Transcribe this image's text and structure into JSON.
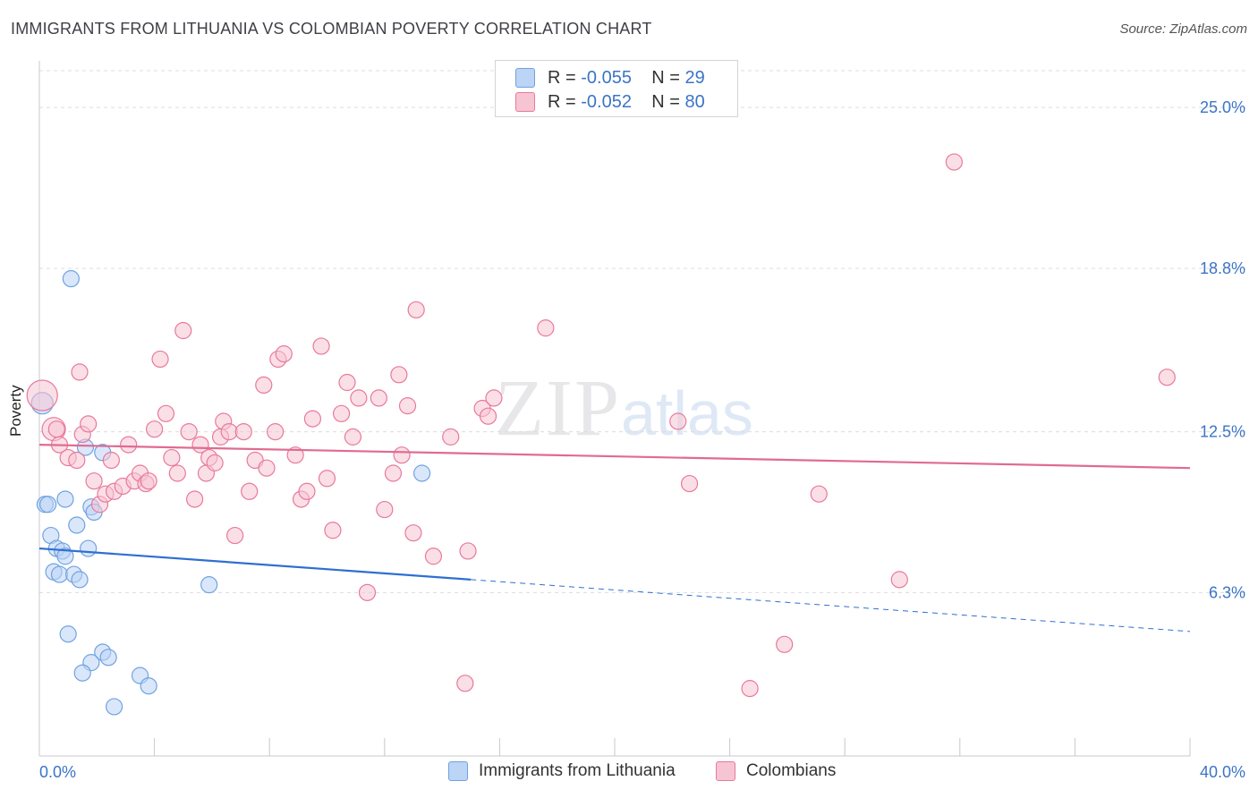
{
  "title": "IMMIGRANTS FROM LITHUANIA VS COLOMBIAN POVERTY CORRELATION CHART",
  "source": "Source: ZipAtlas.com",
  "watermark": {
    "a": "ZIP",
    "b": "atlas"
  },
  "colors": {
    "blue": "#6fa3e0",
    "blue_fill": "#bcd4f5",
    "pink": "#e8799c",
    "pink_fill": "#f7c4d4",
    "text_blue": "#3b74c6"
  },
  "legend": {
    "rows": [
      {
        "r_label": "R = ",
        "r_value": "-0.055",
        "n_label": "N = ",
        "n_value": "29",
        "series": "blue"
      },
      {
        "r_label": "R = ",
        "r_value": "-0.052",
        "n_label": "N = ",
        "n_value": "80",
        "series": "pink"
      }
    ]
  },
  "bottom_legend": [
    "Immigrants from Lithuania",
    "Colombians"
  ],
  "chart_data": {
    "type": "scatter",
    "title": "IMMIGRANTS FROM LITHUANIA VS COLOMBIAN POVERTY CORRELATION CHART",
    "ylabel": "Poverty",
    "xlabel": "",
    "xlim": [
      0,
      40
    ],
    "ylim": [
      0,
      26.8
    ],
    "x_tick_labels": [
      {
        "value": 0,
        "label": "0.0%"
      },
      {
        "value": 40,
        "label": "40.0%"
      }
    ],
    "y_tick_labels": [
      {
        "value": 6.3,
        "label": "6.3%"
      },
      {
        "value": 12.5,
        "label": "12.5%"
      },
      {
        "value": 18.8,
        "label": "18.8%"
      },
      {
        "value": 25.0,
        "label": "25.0%"
      }
    ],
    "grid": {
      "horizontal": true,
      "dashed": true
    },
    "series": [
      {
        "name": "Immigrants from Lithuania",
        "color": "blue",
        "trend": {
          "x0": 0,
          "y0": 8.0,
          "x1": 15,
          "y1": 6.8,
          "dash_x1": 40,
          "dash_y1": 4.8
        },
        "points": [
          [
            1.1,
            18.4
          ],
          [
            0.1,
            13.6
          ],
          [
            1.6,
            11.9
          ],
          [
            2.2,
            11.7
          ],
          [
            0.2,
            9.7
          ],
          [
            0.3,
            9.7
          ],
          [
            0.9,
            9.9
          ],
          [
            1.8,
            9.6
          ],
          [
            1.9,
            9.4
          ],
          [
            1.3,
            8.9
          ],
          [
            0.4,
            8.5
          ],
          [
            0.6,
            8.0
          ],
          [
            0.8,
            7.9
          ],
          [
            0.9,
            7.7
          ],
          [
            1.7,
            8.0
          ],
          [
            0.5,
            7.1
          ],
          [
            0.7,
            7.0
          ],
          [
            1.2,
            7.0
          ],
          [
            1.4,
            6.8
          ],
          [
            5.9,
            6.6
          ],
          [
            1.0,
            4.7
          ],
          [
            2.2,
            4.0
          ],
          [
            2.4,
            3.8
          ],
          [
            1.8,
            3.6
          ],
          [
            1.5,
            3.2
          ],
          [
            3.5,
            3.1
          ],
          [
            3.8,
            2.7
          ],
          [
            2.6,
            1.9
          ],
          [
            13.3,
            10.9
          ]
        ]
      },
      {
        "name": "Colombians",
        "color": "pink",
        "trend": {
          "x0": 0,
          "y0": 12.0,
          "x1": 40,
          "y1": 11.1
        },
        "points": [
          [
            0.1,
            13.9
          ],
          [
            0.5,
            12.6
          ],
          [
            0.7,
            12.0
          ],
          [
            1.0,
            11.5
          ],
          [
            1.3,
            11.4
          ],
          [
            1.4,
            14.8
          ],
          [
            1.5,
            12.4
          ],
          [
            1.7,
            12.8
          ],
          [
            1.9,
            10.6
          ],
          [
            2.1,
            9.7
          ],
          [
            2.3,
            10.1
          ],
          [
            2.5,
            11.4
          ],
          [
            2.6,
            10.2
          ],
          [
            2.9,
            10.4
          ],
          [
            3.1,
            12.0
          ],
          [
            3.3,
            10.6
          ],
          [
            3.5,
            10.9
          ],
          [
            3.7,
            10.5
          ],
          [
            3.8,
            10.6
          ],
          [
            4.0,
            12.6
          ],
          [
            4.2,
            15.3
          ],
          [
            4.4,
            13.2
          ],
          [
            4.6,
            11.5
          ],
          [
            4.8,
            10.9
          ],
          [
            5.0,
            16.4
          ],
          [
            5.2,
            12.5
          ],
          [
            5.4,
            9.9
          ],
          [
            5.6,
            12.0
          ],
          [
            5.8,
            10.9
          ],
          [
            5.9,
            11.5
          ],
          [
            6.1,
            11.3
          ],
          [
            6.3,
            12.3
          ],
          [
            6.4,
            12.9
          ],
          [
            6.6,
            12.5
          ],
          [
            6.8,
            8.5
          ],
          [
            7.1,
            12.5
          ],
          [
            7.3,
            10.2
          ],
          [
            7.5,
            11.4
          ],
          [
            7.8,
            14.3
          ],
          [
            7.9,
            11.1
          ],
          [
            8.2,
            12.5
          ],
          [
            8.3,
            15.3
          ],
          [
            8.5,
            15.5
          ],
          [
            8.9,
            11.6
          ],
          [
            9.1,
            9.9
          ],
          [
            9.3,
            10.2
          ],
          [
            9.5,
            13.0
          ],
          [
            9.8,
            15.8
          ],
          [
            10.0,
            10.7
          ],
          [
            10.2,
            8.7
          ],
          [
            10.5,
            13.2
          ],
          [
            10.7,
            14.4
          ],
          [
            10.9,
            12.3
          ],
          [
            11.1,
            13.8
          ],
          [
            11.4,
            6.3
          ],
          [
            11.8,
            13.8
          ],
          [
            12.0,
            9.5
          ],
          [
            12.3,
            10.9
          ],
          [
            12.5,
            14.7
          ],
          [
            12.6,
            11.6
          ],
          [
            12.8,
            13.5
          ],
          [
            13.0,
            8.6
          ],
          [
            13.1,
            17.2
          ],
          [
            13.7,
            7.7
          ],
          [
            14.3,
            12.3
          ],
          [
            14.8,
            2.8
          ],
          [
            14.9,
            7.9
          ],
          [
            15.4,
            13.4
          ],
          [
            15.6,
            13.1
          ],
          [
            15.8,
            13.8
          ],
          [
            17.6,
            16.5
          ],
          [
            22.2,
            12.9
          ],
          [
            22.6,
            10.5
          ],
          [
            24.7,
            2.6
          ],
          [
            25.9,
            4.3
          ],
          [
            27.1,
            10.1
          ],
          [
            29.9,
            6.8
          ],
          [
            31.8,
            22.9
          ],
          [
            39.2,
            14.6
          ],
          [
            0.6,
            12.6
          ]
        ]
      }
    ]
  }
}
